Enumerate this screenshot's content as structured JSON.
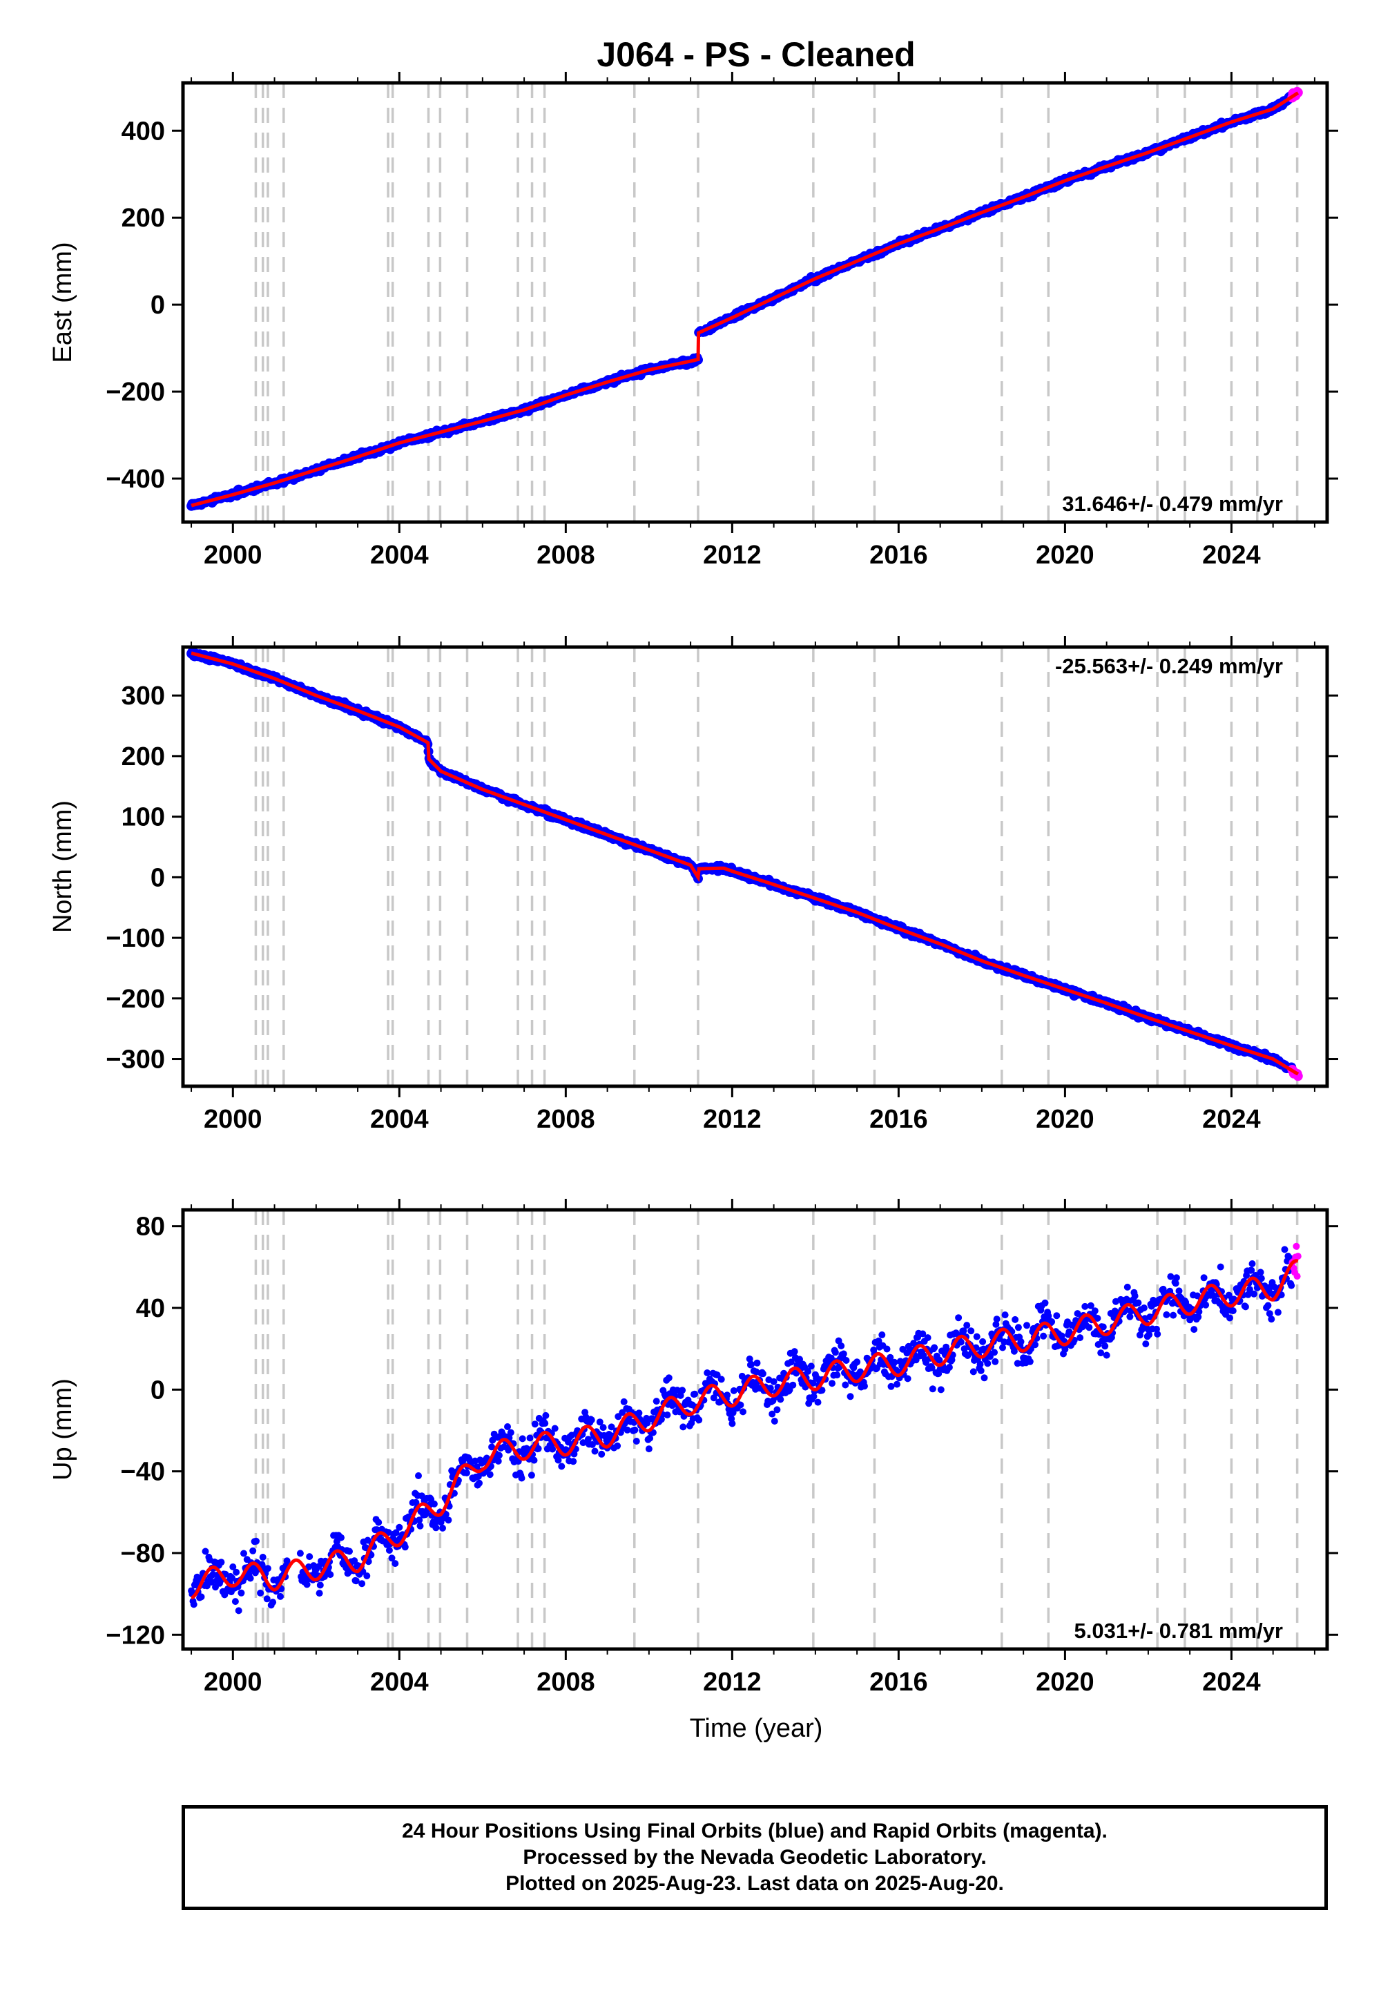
{
  "title": "J064  - PS - Cleaned",
  "colors": {
    "final_orbits": "#0000ff",
    "rapid_orbits": "#ff00ff",
    "model_fit": "#ff0000",
    "event_lines": "#c8c8c8"
  },
  "x_axis": {
    "label": "Time (year)",
    "range": [
      1998.8,
      2026.3
    ],
    "ticks": [
      2000,
      2004,
      2008,
      2012,
      2016,
      2020,
      2024
    ],
    "tick_labels": [
      "2000",
      "2004",
      "2008",
      "2012",
      "2016",
      "2020",
      "2024"
    ]
  },
  "event_lines": [
    2000.55,
    2000.72,
    2000.84,
    2001.22,
    2003.73,
    2003.84,
    2004.7,
    2004.98,
    2005.63,
    2006.85,
    2007.19,
    2007.49,
    2009.65,
    2011.18,
    2013.95,
    2015.42,
    2018.48,
    2019.6,
    2022.22,
    2022.88,
    2024.0,
    2024.62,
    2025.58
  ],
  "panels": [
    {
      "ylabel": "East (mm)",
      "rate_label": "31.646+/- 0.479 mm/yr",
      "rate_position": "bottom-right",
      "y_ticks": [
        -400,
        -200,
        0,
        200,
        400
      ],
      "y_tick_labels": [
        "−400",
        "−200",
        "0",
        "200",
        "400"
      ]
    },
    {
      "ylabel": "North (mm)",
      "rate_label": "-25.563+/- 0.249 mm/yr",
      "rate_position": "top-right",
      "y_ticks": [
        -300,
        -200,
        -100,
        0,
        100,
        200,
        300
      ],
      "y_tick_labels": [
        "−300",
        "−200",
        "−100",
        "0",
        "100",
        "200",
        "300"
      ]
    },
    {
      "ylabel": "Up (mm)",
      "rate_label": "5.031+/- 0.781 mm/yr",
      "rate_position": "bottom-right",
      "y_ticks": [
        -120,
        -80,
        -40,
        0,
        40,
        80
      ],
      "y_tick_labels": [
        "−120",
        "−80",
        "−40",
        "0",
        "40",
        "80"
      ]
    }
  ],
  "chart_data": [
    {
      "type": "scatter",
      "title": "J064  - PS - Cleaned",
      "xlabel": "",
      "ylabel": "East (mm)",
      "xlim": [
        1998.8,
        2026.3
      ],
      "ylim": [
        -500,
        510
      ],
      "grid": false,
      "annotations": [
        "31.646+/- 0.479 mm/yr"
      ],
      "x": [
        1999.0,
        2000.0,
        2001.0,
        2002.0,
        2003.0,
        2004.0,
        2005.0,
        2006.0,
        2007.0,
        2008.0,
        2009.0,
        2010.0,
        2011.0,
        2011.18,
        2011.19,
        2012.0,
        2013.0,
        2014.0,
        2015.0,
        2016.0,
        2017.0,
        2018.0,
        2019.0,
        2020.0,
        2021.0,
        2022.0,
        2023.0,
        2024.0,
        2025.0,
        2025.6
      ],
      "series": [
        {
          "name": "",
          "values": [
            -462,
            -437,
            -410,
            -380,
            -350,
            -318,
            -293,
            -268,
            -242,
            -208,
            -178,
            -150,
            -130,
            -126,
            -65,
            -30,
            15,
            60,
            100,
            140,
            175,
            212,
            247,
            285,
            318,
            350,
            385,
            420,
            450,
            487
          ]
        }
      ]
    },
    {
      "type": "scatter",
      "title": "",
      "xlabel": "",
      "ylabel": "North (mm)",
      "xlim": [
        1998.8,
        2026.3
      ],
      "ylim": [
        -345,
        380
      ],
      "grid": false,
      "annotations": [
        "-25.563+/- 0.249 mm/yr"
      ],
      "x": [
        1999.0,
        2000.0,
        2001.0,
        2002.0,
        2003.0,
        2004.0,
        2004.69,
        2004.71,
        2005.0,
        2006.0,
        2007.0,
        2008.0,
        2009.0,
        2010.0,
        2011.0,
        2011.18,
        2011.2,
        2011.8,
        2012.0,
        2013.0,
        2014.0,
        2015.0,
        2016.0,
        2017.0,
        2018.0,
        2019.0,
        2020.0,
        2021.0,
        2022.0,
        2023.0,
        2024.0,
        2025.0,
        2025.6
      ],
      "series": [
        {
          "name": "",
          "values": [
            370,
            352,
            328,
            300,
            275,
            248,
            222,
            195,
            175,
            145,
            120,
            95,
            70,
            45,
            20,
            0,
            14,
            15,
            10,
            -12,
            -35,
            -58,
            -85,
            -110,
            -138,
            -162,
            -185,
            -208,
            -232,
            -255,
            -278,
            -300,
            -325
          ]
        }
      ]
    },
    {
      "type": "scatter",
      "title": "",
      "xlabel": "Time (year)",
      "ylabel": "Up (mm)",
      "xlim": [
        1998.8,
        2026.3
      ],
      "ylim": [
        -127,
        88
      ],
      "grid": false,
      "annotations": [
        "5.031+/- 0.781 mm/yr"
      ],
      "x": [
        1999.0,
        2000.0,
        2001.0,
        2002.0,
        2003.0,
        2004.0,
        2005.0,
        2006.0,
        2007.0,
        2008.0,
        2009.0,
        2010.0,
        2011.0,
        2012.0,
        2013.0,
        2014.0,
        2015.0,
        2016.0,
        2017.0,
        2018.0,
        2019.0,
        2020.0,
        2021.0,
        2022.0,
        2023.0,
        2024.0,
        2025.0,
        2025.6
      ],
      "series": [
        {
          "name": "",
          "values": [
            -96,
            -90,
            -92,
            -87,
            -83,
            -70,
            -55,
            -33,
            -28,
            -26,
            -22,
            -14,
            -6,
            -2,
            3,
            6,
            10,
            13,
            18,
            22,
            25,
            28,
            33,
            38,
            43,
            47,
            50,
            58
          ]
        }
      ]
    }
  ],
  "footer": {
    "line1": "24 Hour Positions Using Final Orbits (blue) and Rapid Orbits (magenta).",
    "line2": "Processed by the Nevada Geodetic Laboratory.",
    "line3": "Plotted on 2025-Aug-23. Last data on 2025-Aug-20."
  }
}
